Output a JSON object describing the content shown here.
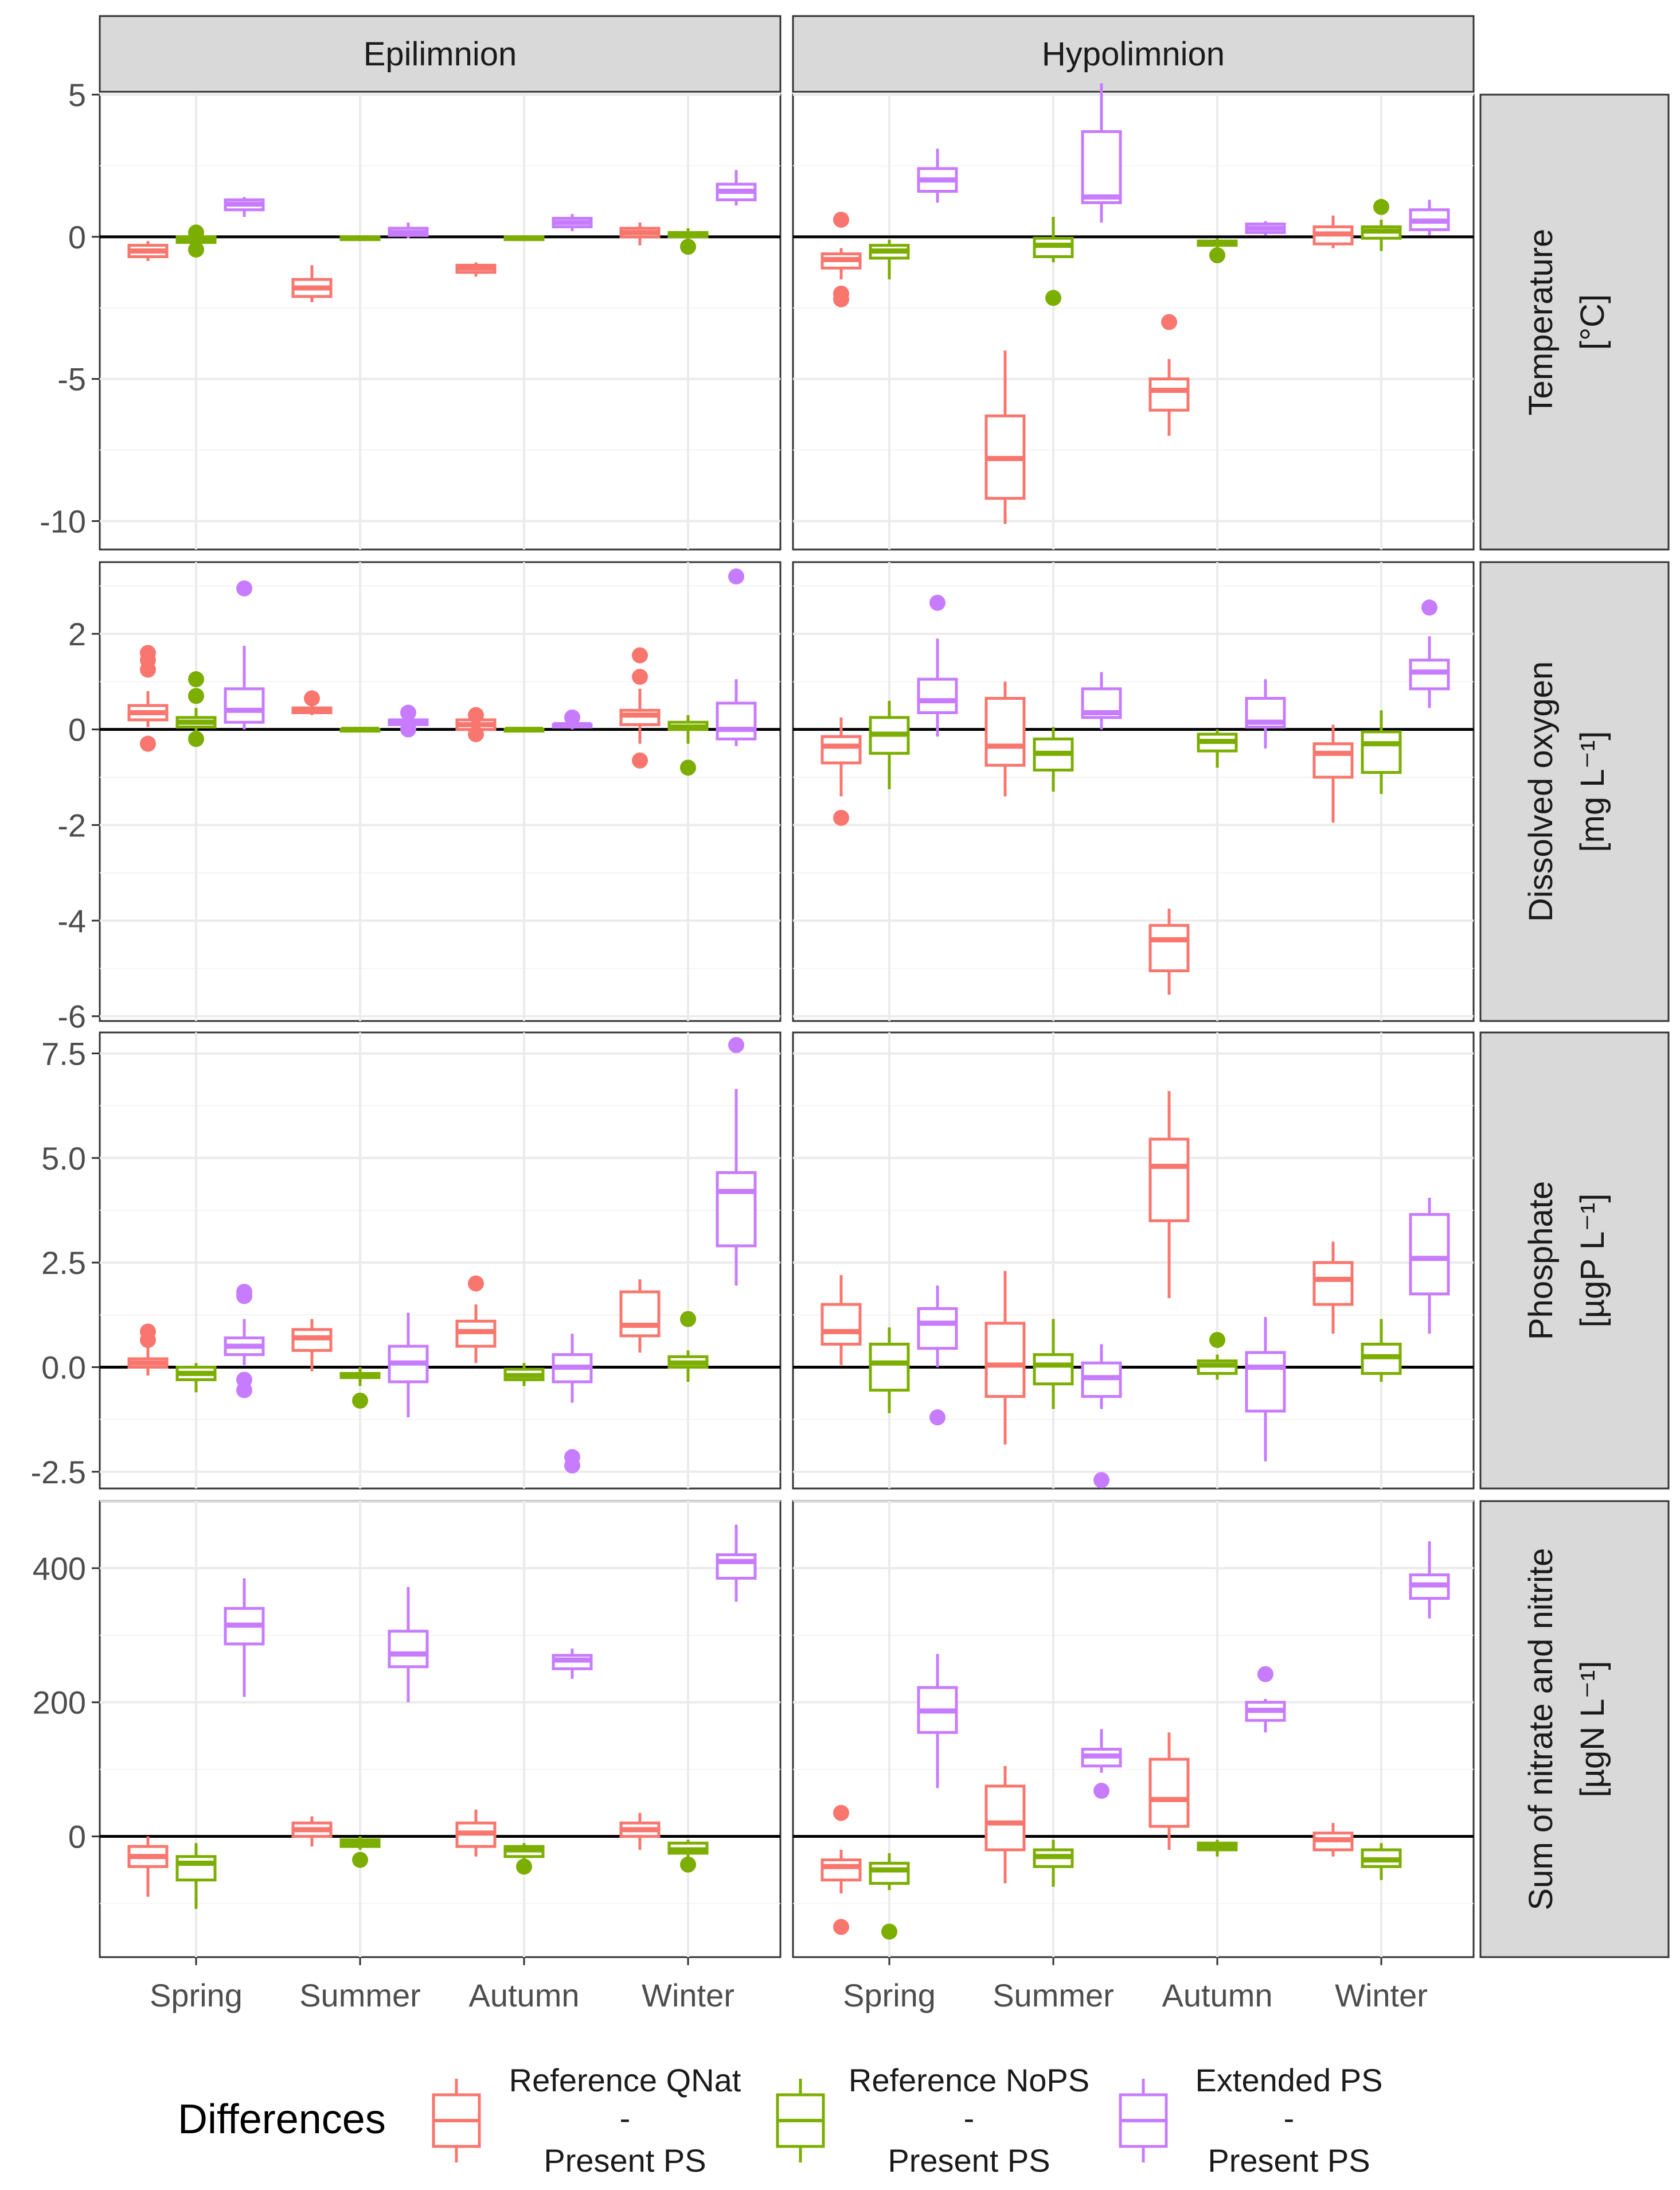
{
  "chart_data": {
    "type": "boxplot",
    "facets": {
      "columns": [
        "Epilimnion",
        "Hypolimnion"
      ],
      "rows": [
        {
          "id": "temp",
          "label": "Temperature",
          "unit": "[°C]",
          "ylim": [
            -11,
            5
          ],
          "ticks": [
            5,
            0,
            -5,
            -10
          ],
          "tick_labels": [
            "5",
            "0",
            "-5",
            "-10"
          ]
        },
        {
          "id": "do",
          "label": "Dissolved oxygen",
          "unit": "[mg L⁻¹]",
          "ylim": [
            -6.1,
            3.5
          ],
          "ticks": [
            2,
            0,
            -2,
            -4,
            -6
          ],
          "tick_labels": [
            "2",
            "0",
            "-2",
            "-4",
            "-6"
          ]
        },
        {
          "id": "po4",
          "label": "Phosphate",
          "unit": "[µgP L⁻¹]",
          "ylim": [
            -2.9,
            8.0
          ],
          "ticks": [
            7.5,
            5.0,
            2.5,
            0.0,
            -2.5
          ],
          "tick_labels": [
            "7.5",
            "5.0",
            "2.5",
            "0.0",
            "-2.5"
          ]
        },
        {
          "id": "nox",
          "label": "Sum of nitrate and nitrite",
          "unit": "[µgN L⁻¹]",
          "ylim": [
            -180,
            500
          ],
          "ticks": [
            400,
            200,
            0
          ],
          "tick_labels": [
            "400",
            "200",
            "0"
          ]
        }
      ]
    },
    "categories": [
      "Spring",
      "Summer",
      "Autumn",
      "Winter"
    ],
    "series": [
      {
        "name": "Reference QNat - Present PS",
        "line1": "Reference QNat",
        "line2": "-",
        "line3": "Present PS",
        "color": "#F8766D"
      },
      {
        "name": "Reference NoPS - Present PS",
        "line1": "Reference NoPS",
        "line2": "-",
        "line3": "Present PS",
        "color": "#7CAE00"
      },
      {
        "name": "Extended PS - Present PS",
        "line1": "Extended PS",
        "line2": "-",
        "line3": "Present PS",
        "color": "#C77CFF"
      }
    ],
    "legend_title": "Differences",
    "legend_position": "bottom",
    "boxes": {
      "temp": {
        "Epilimnion": [
          [
            [
              -0.85,
              -0.7,
              -0.5,
              -0.3,
              -0.15,
              []
            ],
            [
              -0.55,
              -0.2,
              -0.1,
              0.0,
              0.15,
              [
                0.15,
                -0.45
              ]
            ],
            [
              0.7,
              0.95,
              1.15,
              1.3,
              1.4,
              []
            ]
          ],
          [
            [
              -2.3,
              -2.1,
              -1.8,
              -1.5,
              -1.0,
              []
            ],
            [
              -0.15,
              -0.1,
              -0.05,
              0.0,
              0.05,
              []
            ],
            [
              -0.05,
              0.05,
              0.15,
              0.3,
              0.5,
              []
            ]
          ],
          [
            [
              -1.4,
              -1.25,
              -1.1,
              -1.0,
              -0.9,
              []
            ],
            [
              -0.15,
              -0.1,
              -0.05,
              0.0,
              0.05,
              []
            ],
            [
              0.2,
              0.35,
              0.5,
              0.65,
              0.8,
              []
            ]
          ],
          [
            [
              -0.3,
              0.0,
              0.15,
              0.3,
              0.5,
              []
            ],
            [
              -0.35,
              0.0,
              0.1,
              0.15,
              0.3,
              [
                -0.35
              ]
            ],
            [
              1.1,
              1.3,
              1.6,
              1.85,
              2.35,
              []
            ]
          ]
        ],
        "Hypolimnion": [
          [
            [
              -1.5,
              -1.1,
              -0.8,
              -0.6,
              -0.4,
              [
                0.6,
                -2.0,
                -2.2
              ]
            ],
            [
              -1.5,
              -0.75,
              -0.5,
              -0.3,
              -0.1,
              []
            ],
            [
              1.2,
              1.6,
              2.0,
              2.4,
              3.1,
              []
            ]
          ],
          [
            [
              -10.1,
              -9.2,
              -7.8,
              -6.3,
              -4.0,
              []
            ],
            [
              -0.9,
              -0.7,
              -0.3,
              -0.05,
              0.7,
              [
                -2.15
              ]
            ],
            [
              0.5,
              1.2,
              1.4,
              3.7,
              5.4,
              []
            ]
          ],
          [
            [
              -7.0,
              -6.1,
              -5.4,
              -5.0,
              -4.3,
              [
                -3.0
              ]
            ],
            [
              -0.6,
              -0.3,
              -0.2,
              -0.15,
              -0.05,
              [
                -0.65
              ]
            ],
            [
              0.05,
              0.15,
              0.3,
              0.45,
              0.55,
              []
            ]
          ],
          [
            [
              -0.4,
              -0.25,
              0.1,
              0.35,
              0.75,
              []
            ],
            [
              -0.5,
              -0.05,
              0.2,
              0.35,
              0.6,
              [
                1.05
              ]
            ],
            [
              0.05,
              0.25,
              0.55,
              0.95,
              1.3,
              []
            ]
          ]
        ]
      },
      "do": {
        "Epilimnion": [
          [
            [
              0.05,
              0.2,
              0.35,
              0.5,
              0.8,
              [
                1.6,
                1.45,
                1.25,
                -0.3
              ]
            ],
            [
              -0.1,
              0.05,
              0.15,
              0.25,
              0.45,
              [
                1.05,
                0.7,
                -0.2
              ]
            ],
            [
              0.0,
              0.15,
              0.4,
              0.85,
              1.75,
              [
                2.95
              ]
            ]
          ],
          [
            [
              0.3,
              0.35,
              0.4,
              0.45,
              0.5,
              [
                0.65
              ]
            ],
            [
              -0.05,
              0.0,
              0.0,
              0.0,
              0.05,
              []
            ],
            [
              0.05,
              0.1,
              0.15,
              0.2,
              0.3,
              [
                0.35,
                0.0
              ]
            ]
          ],
          [
            [
              -0.05,
              0.0,
              0.1,
              0.2,
              0.35,
              [
                0.3,
                -0.1
              ]
            ],
            [
              -0.05,
              0.0,
              0.0,
              0.0,
              0.05,
              []
            ],
            [
              0.0,
              0.05,
              0.1,
              0.1,
              0.2,
              [
                0.25
              ]
            ]
          ],
          [
            [
              -0.3,
              0.1,
              0.3,
              0.4,
              0.85,
              [
                1.55,
                1.1,
                -0.65
              ]
            ],
            [
              -0.3,
              0.0,
              0.05,
              0.15,
              0.3,
              [
                -0.8
              ]
            ],
            [
              -0.35,
              -0.2,
              0.0,
              0.55,
              1.05,
              [
                3.2
              ]
            ]
          ]
        ],
        "Hypolimnion": [
          [
            [
              -1.4,
              -0.7,
              -0.35,
              -0.15,
              0.25,
              [
                -1.85
              ]
            ],
            [
              -1.25,
              -0.5,
              -0.1,
              0.25,
              0.6,
              []
            ],
            [
              -0.15,
              0.35,
              0.6,
              1.05,
              1.9,
              [
                2.65
              ]
            ]
          ],
          [
            [
              -1.4,
              -0.75,
              -0.35,
              0.65,
              1.0,
              []
            ],
            [
              -1.3,
              -0.85,
              -0.5,
              -0.2,
              0.05,
              []
            ],
            [
              0.0,
              0.25,
              0.35,
              0.85,
              1.2,
              []
            ]
          ],
          [
            [
              -5.55,
              -5.05,
              -4.4,
              -4.1,
              -3.75,
              []
            ],
            [
              -0.8,
              -0.45,
              -0.25,
              -0.1,
              0.0,
              []
            ],
            [
              -0.4,
              0.05,
              0.15,
              0.65,
              1.05,
              []
            ]
          ],
          [
            [
              -1.95,
              -1.0,
              -0.5,
              -0.3,
              0.1,
              []
            ],
            [
              -1.35,
              -0.9,
              -0.3,
              -0.05,
              0.4,
              []
            ],
            [
              0.45,
              0.85,
              1.2,
              1.45,
              1.95,
              [
                2.55
              ]
            ]
          ]
        ]
      },
      "po4": {
        "Epilimnion": [
          [
            [
              -0.2,
              0.0,
              0.1,
              0.2,
              0.5,
              [
                0.85,
                0.65
              ]
            ],
            [
              -0.6,
              -0.3,
              -0.15,
              0.0,
              0.1,
              []
            ],
            [
              0.05,
              0.3,
              0.5,
              0.7,
              1.15,
              [
                1.8,
                1.7,
                -0.3,
                -0.55
              ]
            ]
          ],
          [
            [
              -0.1,
              0.4,
              0.7,
              0.9,
              1.15,
              []
            ],
            [
              -0.45,
              -0.25,
              -0.2,
              -0.15,
              0.0,
              [
                -0.8
              ]
            ],
            [
              -1.2,
              -0.35,
              0.1,
              0.5,
              1.3,
              []
            ]
          ],
          [
            [
              0.1,
              0.5,
              0.85,
              1.1,
              1.5,
              [
                2.0
              ]
            ],
            [
              -0.45,
              -0.3,
              -0.2,
              -0.05,
              0.1,
              []
            ],
            [
              -0.85,
              -0.35,
              0.0,
              0.3,
              0.8,
              [
                -2.15,
                -2.35
              ]
            ]
          ],
          [
            [
              0.35,
              0.75,
              1.0,
              1.8,
              2.1,
              []
            ],
            [
              -0.35,
              0.0,
              0.1,
              0.25,
              0.4,
              [
                1.15
              ]
            ],
            [
              1.95,
              2.9,
              4.2,
              4.65,
              6.65,
              [
                7.7
              ]
            ]
          ]
        ],
        "Hypolimnion": [
          [
            [
              0.05,
              0.55,
              0.85,
              1.5,
              2.2,
              []
            ],
            [
              -1.1,
              -0.55,
              0.1,
              0.55,
              0.95,
              []
            ],
            [
              0.0,
              0.45,
              1.05,
              1.4,
              1.95,
              [
                -1.2
              ]
            ]
          ],
          [
            [
              -1.85,
              -0.7,
              0.05,
              1.05,
              2.3,
              []
            ],
            [
              -1.0,
              -0.4,
              0.05,
              0.3,
              1.15,
              []
            ],
            [
              -1.0,
              -0.7,
              -0.25,
              0.1,
              0.55,
              [
                -2.7
              ]
            ]
          ],
          [
            [
              1.65,
              3.5,
              4.8,
              5.45,
              6.6,
              []
            ],
            [
              -0.3,
              -0.15,
              0.05,
              0.15,
              0.3,
              [
                0.65
              ]
            ],
            [
              -2.25,
              -1.05,
              0.0,
              0.35,
              1.2,
              []
            ]
          ],
          [
            [
              0.8,
              1.5,
              2.1,
              2.5,
              3.0,
              []
            ],
            [
              -0.35,
              -0.15,
              0.25,
              0.55,
              1.15,
              []
            ],
            [
              0.8,
              1.75,
              2.6,
              3.65,
              4.05,
              []
            ]
          ]
        ]
      },
      "nox": {
        "Epilimnion": [
          [
            [
              -90,
              -45,
              -30,
              -15,
              0,
              []
            ],
            [
              -108,
              -65,
              -40,
              -30,
              -10,
              []
            ],
            [
              208,
              287,
              315,
              340,
              385,
              []
            ]
          ],
          [
            [
              -15,
              0,
              10,
              20,
              30,
              []
            ],
            [
              -20,
              -15,
              -10,
              -5,
              0,
              [
                -35
              ]
            ],
            [
              200,
              253,
              272,
              306,
              372,
              []
            ]
          ],
          [
            [
              -30,
              -15,
              5,
              20,
              40,
              []
            ],
            [
              -40,
              -30,
              -20,
              -15,
              -10,
              [
                -45
              ]
            ],
            [
              235,
              250,
              263,
              270,
              280,
              []
            ]
          ],
          [
            [
              -20,
              0,
              10,
              20,
              35,
              []
            ],
            [
              -35,
              -25,
              -20,
              -10,
              -5,
              [
                -42
              ]
            ],
            [
              350,
              385,
              410,
              420,
              465,
              []
            ]
          ]
        ],
        "Hypolimnion": [
          [
            [
              -85,
              -65,
              -45,
              -35,
              -20,
              [
                35,
                -135
              ]
            ],
            [
              -80,
              -70,
              -50,
              -40,
              -25,
              [
                -142
              ]
            ],
            [
              72,
              155,
              187,
              222,
              272,
              []
            ]
          ],
          [
            [
              -70,
              -20,
              20,
              75,
              105,
              []
            ],
            [
              -75,
              -45,
              -30,
              -20,
              -5,
              []
            ],
            [
              95,
              105,
              120,
              130,
              160,
              [
                68
              ]
            ]
          ],
          [
            [
              -20,
              15,
              55,
              115,
              155,
              []
            ],
            [
              -30,
              -20,
              -15,
              -10,
              -5,
              []
            ],
            [
              155,
              173,
              188,
              200,
              205,
              [
                242
              ]
            ]
          ],
          [
            [
              -30,
              -20,
              -5,
              5,
              20,
              []
            ],
            [
              -65,
              -45,
              -35,
              -20,
              -10,
              []
            ],
            [
              325,
              355,
              375,
              390,
              440,
              []
            ]
          ]
        ]
      }
    }
  }
}
